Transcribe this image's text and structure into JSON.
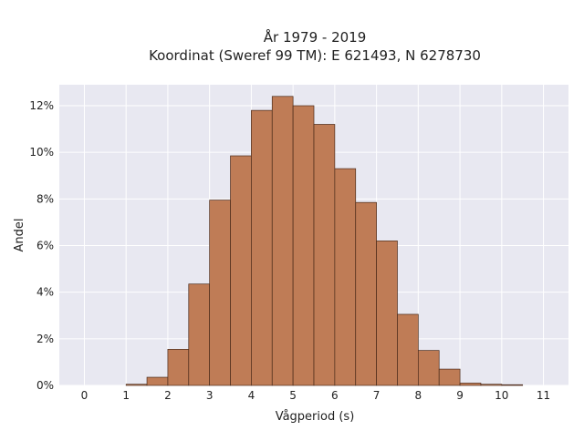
{
  "chart_data": {
    "type": "bar",
    "title": "År 1979 - 2019",
    "subtitle": "Koordinat (Sweref 99 TM): E 621493, N 6278730",
    "xlabel": "Vågperiod (s)",
    "ylabel": "Andel",
    "x_ticks": [
      "0",
      "1",
      "2",
      "3",
      "4",
      "5",
      "6",
      "7",
      "8",
      "9",
      "10",
      "11"
    ],
    "y_ticks": [
      "0%",
      "2%",
      "4%",
      "6%",
      "8%",
      "10%",
      "12%"
    ],
    "y_tick_values": [
      0,
      2,
      4,
      6,
      8,
      10,
      12
    ],
    "xlim": [
      -0.6,
      11.6
    ],
    "ylim": [
      0,
      12.9
    ],
    "bin_width": 0.5,
    "bins": [
      {
        "start": 1.0,
        "value": 0.05
      },
      {
        "start": 1.5,
        "value": 0.35
      },
      {
        "start": 2.0,
        "value": 1.55
      },
      {
        "start": 2.5,
        "value": 4.35
      },
      {
        "start": 3.0,
        "value": 7.95
      },
      {
        "start": 3.5,
        "value": 9.85
      },
      {
        "start": 4.0,
        "value": 11.8
      },
      {
        "start": 4.5,
        "value": 12.4
      },
      {
        "start": 5.0,
        "value": 12.0
      },
      {
        "start": 5.5,
        "value": 11.2
      },
      {
        "start": 6.0,
        "value": 9.3
      },
      {
        "start": 6.5,
        "value": 7.85
      },
      {
        "start": 7.0,
        "value": 6.2
      },
      {
        "start": 7.5,
        "value": 3.05
      },
      {
        "start": 8.0,
        "value": 1.5
      },
      {
        "start": 8.5,
        "value": 0.7
      },
      {
        "start": 9.0,
        "value": 0.1
      },
      {
        "start": 9.5,
        "value": 0.05
      },
      {
        "start": 10.0,
        "value": 0.03
      }
    ],
    "grid": true,
    "bar_color": "#bf7c56",
    "bar_edge_color": "#4a2a1a",
    "plot_bg_color": "#e8e8f1",
    "grid_color": "#ffffff"
  }
}
